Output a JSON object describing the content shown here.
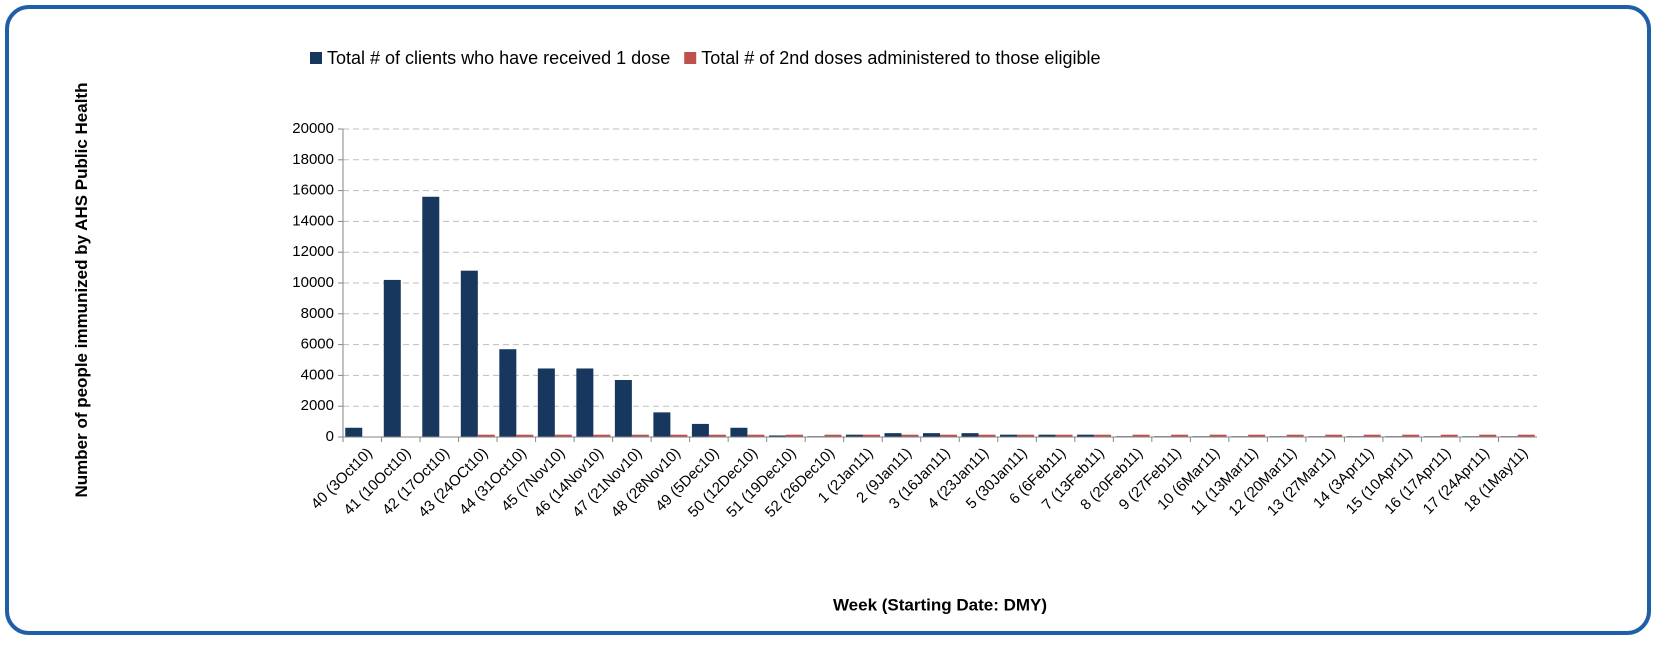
{
  "chart_data": {
    "type": "bar",
    "legend_position": "top",
    "grid": true,
    "y_label": "Number of people immunized by AHS Public Health",
    "x_label": "Week (Starting Date: DMY)",
    "categories": [
      "40 (3Oct10)",
      "41 (10Oct10)",
      "42 (17Oct10)",
      "43 (24OCt10)",
      "44 (31Oct10)",
      "45 (7Nov10)",
      "46 (14Nov10)",
      "47 (21Nov10)",
      "48 (28Nov10)",
      "49 (5Dec10)",
      "50 (12Dec10)",
      "51 (19Dec10)",
      "52 (26Dec10)",
      "1 (2Jan11)",
      "2 (9Jan11)",
      "3 (16Jan11)",
      "4 (23Jan11)",
      "5 (30Jan11)",
      "6 (6Feb11)",
      "7 (13Feb11)",
      "8 (20Feb11)",
      "9 (27Feb11)",
      "10 (6Mar11)",
      "11 (13Mar11)",
      "12 (20Mar11)",
      "13 (27Mar11)",
      "14 (3Apr11)",
      "15 (10Apr11)",
      "16 (17Apr11)",
      "17 (24Apr11)",
      "18 (1May11)"
    ],
    "series": [
      {
        "name": "Total # of clients who have received 1 dose",
        "color": "#17375e",
        "values": [
          600,
          10200,
          15600,
          10800,
          5700,
          4450,
          4450,
          3700,
          1600,
          850,
          600,
          100,
          50,
          150,
          250,
          250,
          250,
          150,
          150,
          150,
          50,
          50,
          50,
          50,
          50,
          50,
          50,
          50,
          50,
          50,
          50
        ]
      },
      {
        "name": "Total # of 2nd doses administered to those eligible",
        "color": "#c0504d",
        "values": [
          0,
          0,
          0,
          150,
          150,
          150,
          150,
          150,
          150,
          150,
          150,
          150,
          150,
          150,
          150,
          150,
          150,
          150,
          150,
          150,
          150,
          150,
          150,
          150,
          150,
          150,
          150,
          150,
          150,
          150,
          150
        ]
      }
    ],
    "ylim": [
      0,
      20000
    ],
    "yticks": [
      0,
      2000,
      4000,
      6000,
      8000,
      10000,
      12000,
      14000,
      16000,
      18000,
      20000
    ]
  }
}
